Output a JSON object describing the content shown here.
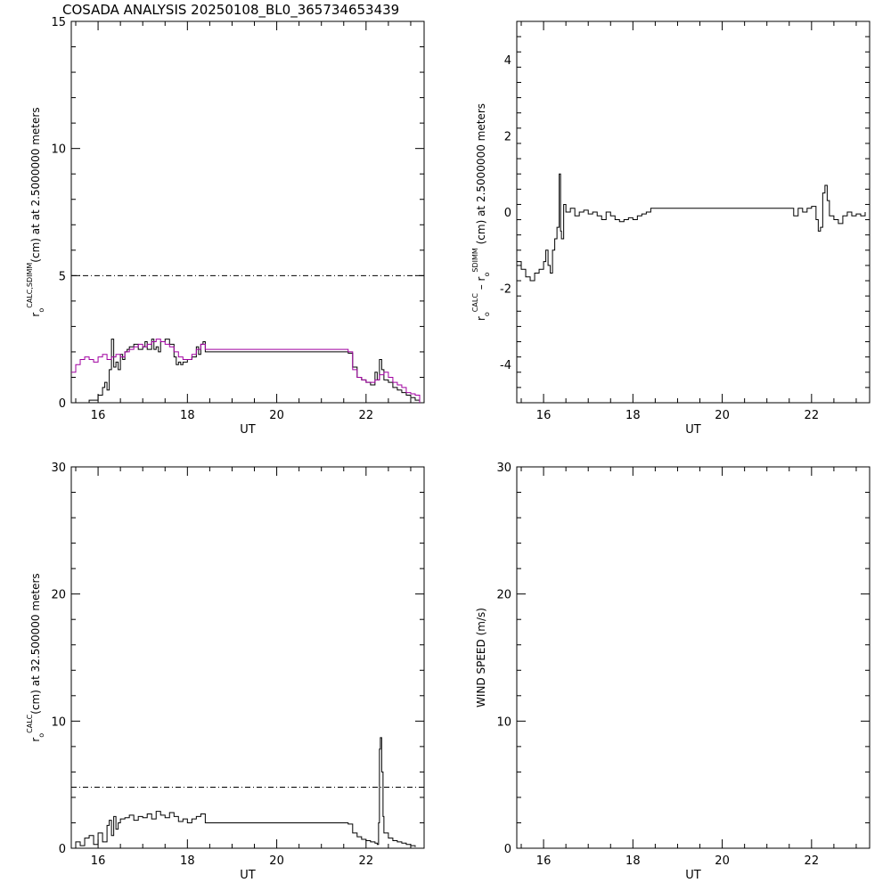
{
  "page": {
    "title": "COSADA ANALYSIS 20250108_BL0_365734653439"
  },
  "chart_data": [
    {
      "id": "tl",
      "type": "line",
      "xlabel": "UT",
      "ylabel": {
        "pre": "r",
        "sub": "o",
        "sup": "CALC,SDIMM",
        "post": "(cm) at  at 2.5000000 meters"
      },
      "xlim": [
        15.4,
        23.3
      ],
      "ylim": [
        0,
        15
      ],
      "xticks": [
        16,
        18,
        20,
        22
      ],
      "yticks": [
        0,
        5,
        10,
        15
      ],
      "hline": 5,
      "series": [
        {
          "color": "#000000",
          "x": [
            15.4,
            15.8,
            16.0,
            16.1,
            16.15,
            16.2,
            16.25,
            16.3,
            16.35,
            16.4,
            16.45,
            16.5,
            16.55,
            16.6,
            16.65,
            16.7,
            16.8,
            16.9,
            17.0,
            17.05,
            17.1,
            17.2,
            17.25,
            17.3,
            17.35,
            17.4,
            17.5,
            17.6,
            17.7,
            17.75,
            17.8,
            17.85,
            17.9,
            18.0,
            18.1,
            18.2,
            18.25,
            18.3,
            18.35,
            18.4,
            18.5,
            21.6,
            21.7,
            21.8,
            21.9,
            22.0,
            22.1,
            22.2,
            22.25,
            22.3,
            22.35,
            22.4,
            22.5,
            22.6,
            22.7,
            22.8,
            22.9,
            23.0,
            23.1,
            23.2
          ],
          "y": [
            0.0,
            0.1,
            0.3,
            0.6,
            0.8,
            0.5,
            1.3,
            2.5,
            1.4,
            1.6,
            1.3,
            1.9,
            1.7,
            2.0,
            2.1,
            2.2,
            2.3,
            2.1,
            2.2,
            2.4,
            2.1,
            2.5,
            2.1,
            2.2,
            2.0,
            2.4,
            2.5,
            2.3,
            1.8,
            1.5,
            1.6,
            1.5,
            1.6,
            1.7,
            1.8,
            2.2,
            1.9,
            2.3,
            2.4,
            2.0,
            2.0,
            1.95,
            1.4,
            1.0,
            0.9,
            0.8,
            0.7,
            1.2,
            0.9,
            1.7,
            1.3,
            0.9,
            0.8,
            0.6,
            0.5,
            0.4,
            0.3,
            0.2,
            0.1,
            0.0
          ]
        },
        {
          "color": "#a000a0",
          "x": [
            15.4,
            15.5,
            15.6,
            15.7,
            15.8,
            15.9,
            16.0,
            16.1,
            16.2,
            16.3,
            16.4,
            16.5,
            16.6,
            16.7,
            16.8,
            16.9,
            17.0,
            17.1,
            17.2,
            17.3,
            17.4,
            17.5,
            17.6,
            17.7,
            17.8,
            17.9,
            18.0,
            18.1,
            18.2,
            18.3,
            18.4,
            21.6,
            21.7,
            21.8,
            21.9,
            22.0,
            22.1,
            22.2,
            22.3,
            22.4,
            22.5,
            22.6,
            22.7,
            22.8,
            22.9,
            23.0,
            23.1,
            23.2
          ],
          "y": [
            1.2,
            1.5,
            1.7,
            1.8,
            1.7,
            1.6,
            1.8,
            1.9,
            1.7,
            1.8,
            1.9,
            1.8,
            2.0,
            2.1,
            2.2,
            2.3,
            2.2,
            2.3,
            2.4,
            2.5,
            2.4,
            2.3,
            2.2,
            2.0,
            1.8,
            1.7,
            1.7,
            1.9,
            2.1,
            2.3,
            2.1,
            2.0,
            1.3,
            1.0,
            0.9,
            0.8,
            0.8,
            0.9,
            1.1,
            1.2,
            1.0,
            0.8,
            0.7,
            0.6,
            0.4,
            0.35,
            0.3,
            0.0
          ]
        }
      ]
    },
    {
      "id": "tr",
      "type": "line",
      "xlabel": "UT",
      "ylabel": {
        "pre": "r",
        "sub": "o",
        "sup": "CALC",
        "mid": " – r",
        "sub2": "o",
        "sup2": "SDIMM",
        "post": " (cm) at 2.5000000 meters"
      },
      "xlim": [
        15.4,
        23.3
      ],
      "ylim": [
        -5,
        5
      ],
      "xticks": [
        16,
        18,
        20,
        22
      ],
      "yticks": [
        -4,
        -2,
        0,
        2,
        4
      ],
      "series": [
        {
          "color": "#000000",
          "x": [
            15.4,
            15.5,
            15.6,
            15.7,
            15.8,
            15.9,
            16.0,
            16.05,
            16.1,
            16.15,
            16.2,
            16.25,
            16.3,
            16.35,
            16.38,
            16.4,
            16.45,
            16.5,
            16.6,
            16.7,
            16.8,
            16.9,
            17.0,
            17.1,
            17.2,
            17.3,
            17.4,
            17.5,
            17.6,
            17.7,
            17.8,
            17.9,
            18.0,
            18.1,
            18.2,
            18.3,
            18.4,
            21.6,
            21.7,
            21.8,
            21.9,
            22.0,
            22.1,
            22.15,
            22.2,
            22.25,
            22.3,
            22.35,
            22.4,
            22.5,
            22.6,
            22.7,
            22.8,
            22.9,
            23.0,
            23.1,
            23.2
          ],
          "y": [
            -1.3,
            -1.5,
            -1.7,
            -1.8,
            -1.6,
            -1.5,
            -1.3,
            -1.0,
            -1.4,
            -1.6,
            -1.0,
            -0.7,
            -0.4,
            1.0,
            -0.5,
            -0.7,
            0.2,
            0.0,
            0.1,
            -0.1,
            0.0,
            0.05,
            -0.05,
            0.0,
            -0.1,
            -0.2,
            0.0,
            -0.1,
            -0.2,
            -0.25,
            -0.2,
            -0.15,
            -0.2,
            -0.1,
            -0.05,
            0.0,
            0.1,
            -0.1,
            0.1,
            0.0,
            0.1,
            0.15,
            -0.2,
            -0.5,
            -0.4,
            0.5,
            0.7,
            0.3,
            -0.1,
            -0.2,
            -0.3,
            -0.1,
            0.0,
            -0.1,
            -0.05,
            -0.1,
            0.0
          ]
        }
      ]
    },
    {
      "id": "bl",
      "type": "line",
      "xlabel": "UT",
      "ylabel": {
        "pre": "r",
        "sub": "o",
        "sup": "CALC",
        "post": "(cm) at 32.500000 meters"
      },
      "xlim": [
        15.4,
        23.3
      ],
      "ylim": [
        0,
        30
      ],
      "xticks": [
        16,
        18,
        20,
        22
      ],
      "yticks": [
        0,
        10,
        20,
        30
      ],
      "hline": 4.8,
      "series": [
        {
          "color": "#000000",
          "x": [
            15.4,
            15.5,
            15.6,
            15.7,
            15.8,
            15.9,
            16.0,
            16.1,
            16.2,
            16.25,
            16.3,
            16.35,
            16.4,
            16.45,
            16.5,
            16.6,
            16.7,
            16.8,
            16.9,
            17.0,
            17.1,
            17.2,
            17.3,
            17.4,
            17.5,
            17.6,
            17.7,
            17.8,
            17.9,
            18.0,
            18.1,
            18.2,
            18.3,
            18.4,
            21.6,
            21.7,
            21.8,
            21.9,
            22.0,
            22.1,
            22.2,
            22.25,
            22.28,
            22.3,
            22.32,
            22.35,
            22.38,
            22.4,
            22.5,
            22.6,
            22.7,
            22.8,
            22.9,
            23.0,
            23.1
          ],
          "y": [
            0.0,
            0.5,
            0.2,
            0.8,
            1.0,
            0.3,
            1.2,
            0.5,
            1.8,
            2.2,
            1.0,
            2.5,
            1.5,
            2.0,
            2.3,
            2.4,
            2.6,
            2.2,
            2.5,
            2.4,
            2.7,
            2.3,
            2.9,
            2.6,
            2.4,
            2.8,
            2.5,
            2.1,
            2.3,
            2.0,
            2.3,
            2.5,
            2.7,
            2.0,
            1.9,
            1.2,
            0.9,
            0.7,
            0.6,
            0.5,
            0.4,
            0.3,
            2.0,
            7.8,
            8.7,
            6.0,
            2.5,
            1.2,
            0.8,
            0.6,
            0.5,
            0.4,
            0.3,
            0.2,
            0.1
          ]
        }
      ]
    },
    {
      "id": "br",
      "type": "line",
      "xlabel": "UT",
      "ylabel": {
        "post": "WIND SPEED (m/s)"
      },
      "xlim": [
        15.4,
        23.3
      ],
      "ylim": [
        0,
        30
      ],
      "xticks": [
        16,
        18,
        20,
        22
      ],
      "yticks": [
        0,
        10,
        20,
        30
      ],
      "series": []
    }
  ]
}
